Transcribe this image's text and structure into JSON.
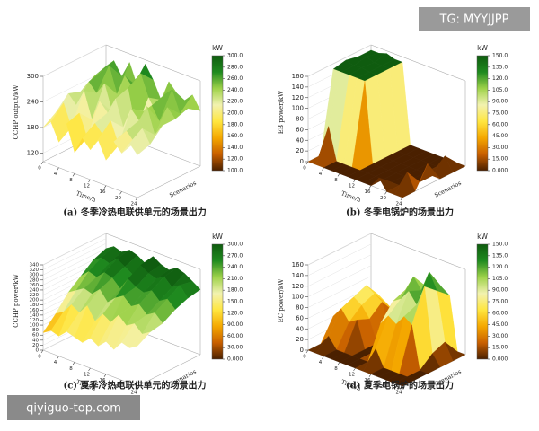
{
  "watermarks": {
    "top": "TG: MYYJJPP",
    "bottom": "qiyiguo-top.com"
  },
  "colormap": [
    "#4a2000",
    "#c85f00",
    "#f5a800",
    "#ffe640",
    "#f2f2b0",
    "#9ed24a",
    "#1f8a1f",
    "#0f5c0f"
  ],
  "chart_data": [
    {
      "type": "surface",
      "title": "(a) 冬季冷热电联供单元的场景出力",
      "zlabel": "CCHP output/kW",
      "xlabel": "Time/h",
      "ylabel": "Scenarios",
      "colorbar_label": "kW",
      "x": [
        0,
        2,
        4,
        6,
        8,
        10,
        12,
        14,
        16,
        18,
        20,
        22,
        24
      ],
      "xlim": [
        0,
        24
      ],
      "xticks": [
        0,
        4,
        8,
        12,
        16,
        20,
        24
      ],
      "z": [
        [
          180,
          200,
          160,
          210,
          150,
          190,
          170,
          200,
          160,
          210,
          190,
          220,
          200
        ],
        [
          200,
          230,
          180,
          220,
          170,
          210,
          190,
          230,
          180,
          220,
          200,
          240,
          210
        ],
        [
          230,
          210,
          250,
          190,
          240,
          220,
          260,
          200,
          250,
          230,
          270,
          210,
          240
        ],
        [
          220,
          250,
          230,
          260,
          200,
          240,
          270,
          180,
          230,
          250,
          220,
          260,
          240
        ],
        [
          240,
          260,
          280,
          220,
          270,
          250,
          290,
          240,
          210,
          260,
          280,
          230,
          250
        ],
        [
          250,
          270,
          240,
          280,
          230,
          290,
          260,
          220,
          270,
          250,
          240,
          260,
          230
        ]
      ],
      "zlim": [
        100,
        300
      ],
      "zticks": [
        120,
        180,
        240,
        300
      ],
      "clim": [
        100,
        300
      ],
      "cticks": [
        {
          "value": 100,
          "label": "100.0"
        },
        {
          "value": 120,
          "label": "120.0"
        },
        {
          "value": 140,
          "label": "140.0"
        },
        {
          "value": 160,
          "label": "160.0"
        },
        {
          "value": 180,
          "label": "180.0"
        },
        {
          "value": 200,
          "label": "200.0"
        },
        {
          "value": 220,
          "label": "220.0"
        },
        {
          "value": 240,
          "label": "240.0"
        },
        {
          "value": 260,
          "label": "260.0"
        },
        {
          "value": 280,
          "label": "280.0"
        },
        {
          "value": 300,
          "label": "300.0"
        }
      ]
    },
    {
      "type": "surface",
      "title": "(b) 冬季电锅炉的场景出力",
      "zlabel": "EB power/kW",
      "xlabel": "Time/h",
      "ylabel": "Scenarios",
      "colorbar_label": "kW",
      "x": [
        0,
        2,
        4,
        6,
        8,
        10,
        12,
        14,
        16,
        18,
        20,
        22,
        24
      ],
      "xlim": [
        0,
        24
      ],
      "xticks": [
        0,
        4,
        8,
        12,
        16,
        20,
        24
      ],
      "z": [
        [
          0,
          0,
          0,
          0,
          0,
          0,
          0,
          0,
          0,
          20,
          0,
          0,
          0
        ],
        [
          0,
          60,
          0,
          0,
          0,
          0,
          0,
          0,
          0,
          0,
          0,
          30,
          0
        ],
        [
          150,
          150,
          150,
          150,
          150,
          0,
          0,
          0,
          0,
          0,
          0,
          0,
          40
        ],
        [
          155,
          150,
          152,
          150,
          150,
          0,
          0,
          0,
          0,
          0,
          0,
          0,
          0
        ],
        [
          150,
          155,
          150,
          150,
          150,
          0,
          0,
          0,
          0,
          0,
          0,
          25,
          0
        ],
        [
          150,
          150,
          155,
          150,
          150,
          0,
          0,
          0,
          0,
          0,
          0,
          0,
          0
        ]
      ],
      "zlim": [
        0,
        160
      ],
      "zticks": [
        0,
        20,
        40,
        60,
        80,
        100,
        120,
        140,
        160
      ],
      "clim": [
        0,
        150
      ],
      "cticks": [
        {
          "value": 0,
          "label": "0.000"
        },
        {
          "value": 15,
          "label": "15.00"
        },
        {
          "value": 30,
          "label": "30.00"
        },
        {
          "value": 45,
          "label": "45.00"
        },
        {
          "value": 60,
          "label": "60.00"
        },
        {
          "value": 75,
          "label": "75.00"
        },
        {
          "value": 90,
          "label": "90.00"
        },
        {
          "value": 105,
          "label": "105.0"
        },
        {
          "value": 120,
          "label": "120.0"
        },
        {
          "value": 135,
          "label": "135.0"
        },
        {
          "value": 150,
          "label": "150.0"
        }
      ]
    },
    {
      "type": "surface",
      "title": "(c) 夏季冷热电联供单元的场景出力",
      "zlabel": "CCHP power/kW",
      "xlabel": "Time/h",
      "ylabel": "Scenarios",
      "colorbar_label": "kW",
      "x": [
        0,
        2,
        4,
        6,
        8,
        10,
        12,
        14,
        16,
        18,
        20,
        22,
        24
      ],
      "xlim": [
        0,
        24
      ],
      "xticks": [
        0,
        4,
        8,
        12,
        16,
        20,
        24
      ],
      "z": [
        [
          70,
          90,
          80,
          110,
          100,
          90,
          120,
          100,
          130,
          110,
          150,
          140,
          160
        ],
        [
          120,
          140,
          180,
          160,
          200,
          150,
          190,
          170,
          210,
          180,
          200,
          170,
          190
        ],
        [
          180,
          200,
          220,
          210,
          240,
          200,
          230,
          250,
          220,
          240,
          210,
          230,
          200
        ],
        [
          220,
          250,
          240,
          270,
          260,
          230,
          280,
          260,
          250,
          270,
          240,
          260,
          230
        ],
        [
          260,
          280,
          270,
          300,
          280,
          260,
          310,
          290,
          280,
          300,
          270,
          290,
          250
        ],
        [
          280,
          300,
          290,
          310,
          300,
          280,
          320,
          300,
          290,
          310,
          300,
          280,
          260
        ]
      ],
      "zlim": [
        0,
        340
      ],
      "zticks": [
        0,
        20,
        40,
        60,
        80,
        100,
        120,
        140,
        160,
        180,
        200,
        220,
        240,
        260,
        280,
        300,
        320,
        340
      ],
      "clim": [
        0,
        300
      ],
      "cticks": [
        {
          "value": 0,
          "label": "0.000"
        },
        {
          "value": 30,
          "label": "30.00"
        },
        {
          "value": 60,
          "label": "60.00"
        },
        {
          "value": 90,
          "label": "90.00"
        },
        {
          "value": 120,
          "label": "120.0"
        },
        {
          "value": 150,
          "label": "150.0"
        },
        {
          "value": 180,
          "label": "180.0"
        },
        {
          "value": 210,
          "label": "210.0"
        },
        {
          "value": 240,
          "label": "240.0"
        },
        {
          "value": 270,
          "label": "270.0"
        },
        {
          "value": 300,
          "label": "300.0"
        }
      ]
    },
    {
      "type": "surface",
      "title": "(d) 夏季电锅炉的场景出力",
      "zlabel": "EC power/kW",
      "xlabel": "Time/h",
      "ylabel": "Scenarios",
      "colorbar_label": "kW",
      "x": [
        0,
        2,
        4,
        6,
        8,
        10,
        12,
        14,
        16,
        18,
        20,
        22,
        24
      ],
      "xlim": [
        0,
        24
      ],
      "xticks": [
        0,
        4,
        8,
        12,
        16,
        20,
        24
      ],
      "z": [
        [
          0,
          0,
          0,
          0,
          0,
          0,
          0,
          0,
          0,
          0,
          0,
          0,
          0
        ],
        [
          0,
          20,
          0,
          0,
          0,
          0,
          0,
          30,
          0,
          0,
          0,
          0,
          0
        ],
        [
          40,
          60,
          40,
          50,
          0,
          0,
          60,
          80,
          70,
          90,
          80,
          0,
          0
        ],
        [
          50,
          70,
          60,
          40,
          0,
          0,
          90,
          100,
          120,
          100,
          140,
          20,
          0
        ],
        [
          60,
          80,
          70,
          60,
          0,
          0,
          100,
          130,
          110,
          150,
          120,
          30,
          0
        ],
        [
          30,
          50,
          40,
          30,
          0,
          0,
          80,
          100,
          90,
          110,
          100,
          0,
          0
        ]
      ],
      "zlim": [
        0,
        160
      ],
      "zticks": [
        0,
        20,
        40,
        60,
        80,
        100,
        120,
        140,
        160
      ],
      "clim": [
        0,
        150
      ],
      "cticks": [
        {
          "value": 0,
          "label": "0.000"
        },
        {
          "value": 15,
          "label": "15.00"
        },
        {
          "value": 30,
          "label": "30.00"
        },
        {
          "value": 45,
          "label": "45.00"
        },
        {
          "value": 60,
          "label": "60.00"
        },
        {
          "value": 75,
          "label": "75.00"
        },
        {
          "value": 90,
          "label": "90.00"
        },
        {
          "value": 105,
          "label": "105.0"
        },
        {
          "value": 120,
          "label": "120.0"
        },
        {
          "value": 135,
          "label": "135.0"
        },
        {
          "value": 150,
          "label": "150.0"
        }
      ]
    }
  ]
}
